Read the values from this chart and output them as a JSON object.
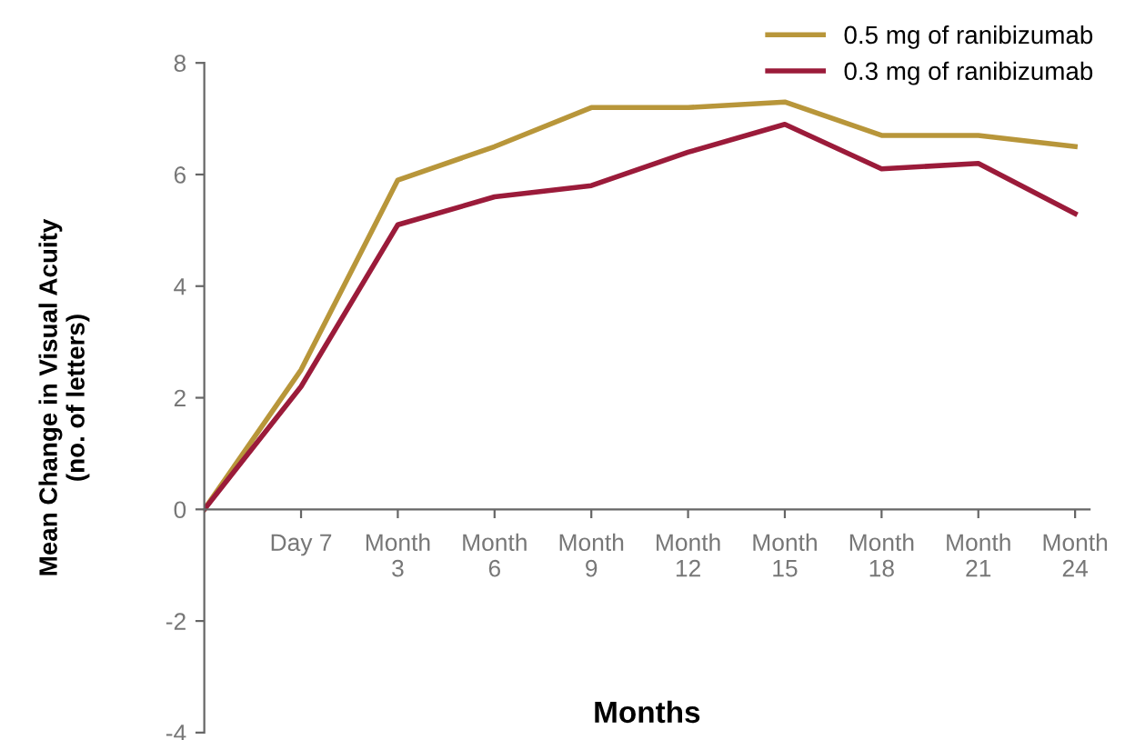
{
  "chart_data": {
    "type": "line",
    "xlabel": "Months",
    "ylabel": "Mean Change in Visual Acuity\n(no. of letters)",
    "categories": [
      null,
      "Day 7",
      "Month\n3",
      "Month\n6",
      "Month\n9",
      "Month\n12",
      "Month\n15",
      "Month\n18",
      "Month\n21",
      "Month\n24"
    ],
    "series": [
      {
        "name": "0.5 mg of ranibizumab",
        "color": "#b8963a",
        "values": [
          0,
          2.5,
          5.9,
          6.5,
          7.2,
          7.2,
          7.3,
          6.7,
          6.7,
          6.5
        ]
      },
      {
        "name": "0.3 mg of ranibizumab",
        "color": "#9b1b3a",
        "values": [
          0,
          2.2,
          5.1,
          5.6,
          5.8,
          6.4,
          6.9,
          6.1,
          6.2,
          5.3
        ]
      }
    ],
    "ylim": [
      -4,
      8
    ],
    "yticks": [
      -4,
      -2,
      0,
      2,
      4,
      6,
      8
    ],
    "grid": false,
    "legend": "top right",
    "marker": "none",
    "line_style": "solid"
  }
}
